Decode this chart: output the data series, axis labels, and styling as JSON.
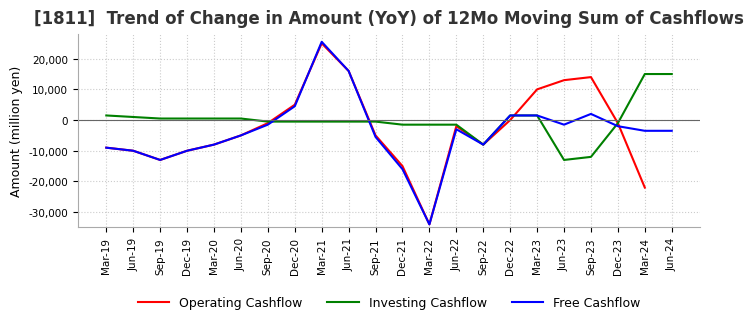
{
  "title": "[1811]  Trend of Change in Amount (YoY) of 12Mo Moving Sum of Cashflows",
  "ylabel": "Amount (million yen)",
  "ylim": [
    -35000,
    28000
  ],
  "yticks": [
    -30000,
    -20000,
    -10000,
    0,
    10000,
    20000
  ],
  "dates": [
    "Mar-19",
    "Jun-19",
    "Sep-19",
    "Dec-19",
    "Mar-20",
    "Jun-20",
    "Sep-20",
    "Dec-20",
    "Mar-21",
    "Jun-21",
    "Sep-21",
    "Dec-21",
    "Mar-22",
    "Jun-22",
    "Sep-22",
    "Dec-22",
    "Mar-23",
    "Jun-23",
    "Sep-23",
    "Dec-23",
    "Mar-24",
    "Jun-24"
  ],
  "operating": [
    -9000,
    -10000,
    -13000,
    -10000,
    -8000,
    -5000,
    -1000,
    5000,
    25000,
    16000,
    -5000,
    -15000,
    -34000,
    -2000,
    -8000,
    0,
    10000,
    13000,
    14000,
    -1000,
    -22000,
    null
  ],
  "investing": [
    1500,
    1000,
    500,
    500,
    500,
    500,
    -500,
    -500,
    -500,
    -500,
    -500,
    -1500,
    -1500,
    -1500,
    -8000,
    1500,
    1500,
    -13000,
    -12000,
    -1000,
    15000,
    15000
  ],
  "free": [
    -9000,
    -10000,
    -13000,
    -10000,
    -8000,
    -5000,
    -1500,
    4500,
    25500,
    16000,
    -5500,
    -16000,
    -34000,
    -3000,
    -8000,
    1500,
    1500,
    -1500,
    2000,
    -2000,
    -3500,
    -3500
  ],
  "line_colors": {
    "operating": "#ff0000",
    "investing": "#008000",
    "free": "#0000ff"
  },
  "legend_labels": [
    "Operating Cashflow",
    "Investing Cashflow",
    "Free Cashflow"
  ],
  "background_color": "#ffffff",
  "title_color": "#333333",
  "title_fontsize": 12,
  "grid_color": "#cccccc"
}
